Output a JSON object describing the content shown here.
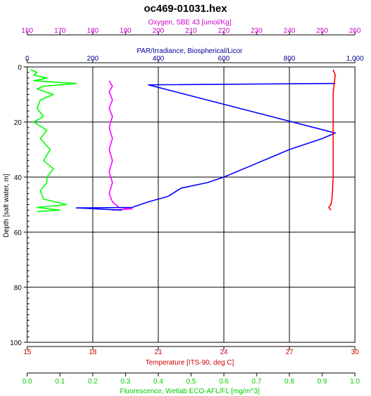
{
  "chart_data": {
    "type": "line",
    "title": "oc469-01031.hex",
    "ylabel": "Depth [salt water, m]",
    "y_axis": {
      "range": [
        0,
        100
      ],
      "inverted": true,
      "ticks": [
        0,
        20,
        40,
        60,
        80,
        100
      ],
      "minor_step": 2
    },
    "x_axes": [
      {
        "key": "oxygen",
        "label": "Oxygen, SBE 43 [umol/Kg]",
        "position": "top-outer",
        "color": "#cc00cc",
        "range": [
          160,
          260
        ],
        "ticks": [
          160,
          170,
          180,
          190,
          200,
          210,
          220,
          230,
          240,
          250,
          260
        ]
      },
      {
        "key": "par",
        "label": "PAR/Irradiance, Biospherical/Licor",
        "position": "top-inner",
        "color": "#000099",
        "range": [
          0,
          1000
        ],
        "ticks": [
          0,
          200,
          400,
          600,
          800,
          1000
        ],
        "tick_labels": [
          "0",
          "200",
          "400",
          "600",
          "800",
          "1,000"
        ]
      },
      {
        "key": "temperature",
        "label": "Temperature [ITS-90, deg C]",
        "position": "bottom-inner",
        "color": "#cc0000",
        "range": [
          15,
          30
        ],
        "ticks": [
          15,
          18,
          21,
          24,
          27,
          30
        ]
      },
      {
        "key": "fluorescence",
        "label": "Fluorescence, Wetlab ECO-AFL/FL [mg/m^3]",
        "position": "bottom-outer",
        "color": "#00cc00",
        "range": [
          0,
          1
        ],
        "ticks": [
          0,
          0.1,
          0.2,
          0.3,
          0.4,
          0.5,
          0.6,
          0.7,
          0.8,
          0.9,
          1.0
        ],
        "tick_labels": [
          "0.0",
          "0.1",
          "0.2",
          "0.3",
          "0.4",
          "0.5",
          "0.6",
          "0.7",
          "0.8",
          "0.9",
          "1.0"
        ]
      }
    ],
    "grid": true,
    "series": [
      {
        "axis": "fluorescence",
        "color": "#00ff00",
        "points": [
          [
            0.01,
            1
          ],
          [
            0.03,
            2
          ],
          [
            0.02,
            3
          ],
          [
            0.06,
            4
          ],
          [
            0.02,
            5
          ],
          [
            0.15,
            6
          ],
          [
            0.05,
            7
          ],
          [
            0.03,
            8
          ],
          [
            0.08,
            10
          ],
          [
            0.04,
            12
          ],
          [
            0.03,
            15
          ],
          [
            0.05,
            18
          ],
          [
            0.02,
            20
          ],
          [
            0.06,
            23
          ],
          [
            0.04,
            26
          ],
          [
            0.07,
            30
          ],
          [
            0.05,
            34
          ],
          [
            0.08,
            37
          ],
          [
            0.06,
            40
          ],
          [
            0.06,
            42
          ],
          [
            0.04,
            45
          ],
          [
            0.05,
            48
          ],
          [
            0.12,
            50
          ],
          [
            0.03,
            51
          ],
          [
            0.1,
            52
          ],
          [
            0.03,
            52.5
          ]
        ]
      },
      {
        "axis": "oxygen",
        "color": "#ff00ff",
        "points": [
          [
            185,
            5
          ],
          [
            186,
            7
          ],
          [
            185,
            9
          ],
          [
            186,
            12
          ],
          [
            185,
            15
          ],
          [
            186,
            18
          ],
          [
            185,
            22
          ],
          [
            186,
            26
          ],
          [
            185,
            30
          ],
          [
            186,
            34
          ],
          [
            185,
            38
          ],
          [
            186,
            42
          ],
          [
            185,
            46
          ],
          [
            186,
            49
          ],
          [
            188,
            51
          ],
          [
            192,
            51.5
          ],
          [
            186,
            52
          ]
        ]
      },
      {
        "axis": "par",
        "color": "#0000ff",
        "points": [
          [
            940,
            6
          ],
          [
            370,
            6.5
          ],
          [
            940,
            24
          ],
          [
            900,
            26
          ],
          [
            800,
            30
          ],
          [
            700,
            35
          ],
          [
            600,
            40
          ],
          [
            550,
            42
          ],
          [
            470,
            44
          ],
          [
            430,
            47
          ],
          [
            370,
            49
          ],
          [
            320,
            51
          ],
          [
            150,
            51.2
          ],
          [
            290,
            52
          ]
        ]
      },
      {
        "axis": "temperature",
        "color": "#ff0000",
        "points": [
          [
            29.0,
            1
          ],
          [
            29.1,
            3
          ],
          [
            29.05,
            6
          ],
          [
            29.0,
            10
          ],
          [
            29.0,
            20
          ],
          [
            29.0,
            30
          ],
          [
            29.0,
            40
          ],
          [
            28.95,
            48
          ],
          [
            28.9,
            50
          ],
          [
            28.8,
            51
          ],
          [
            28.9,
            52
          ]
        ]
      }
    ]
  }
}
